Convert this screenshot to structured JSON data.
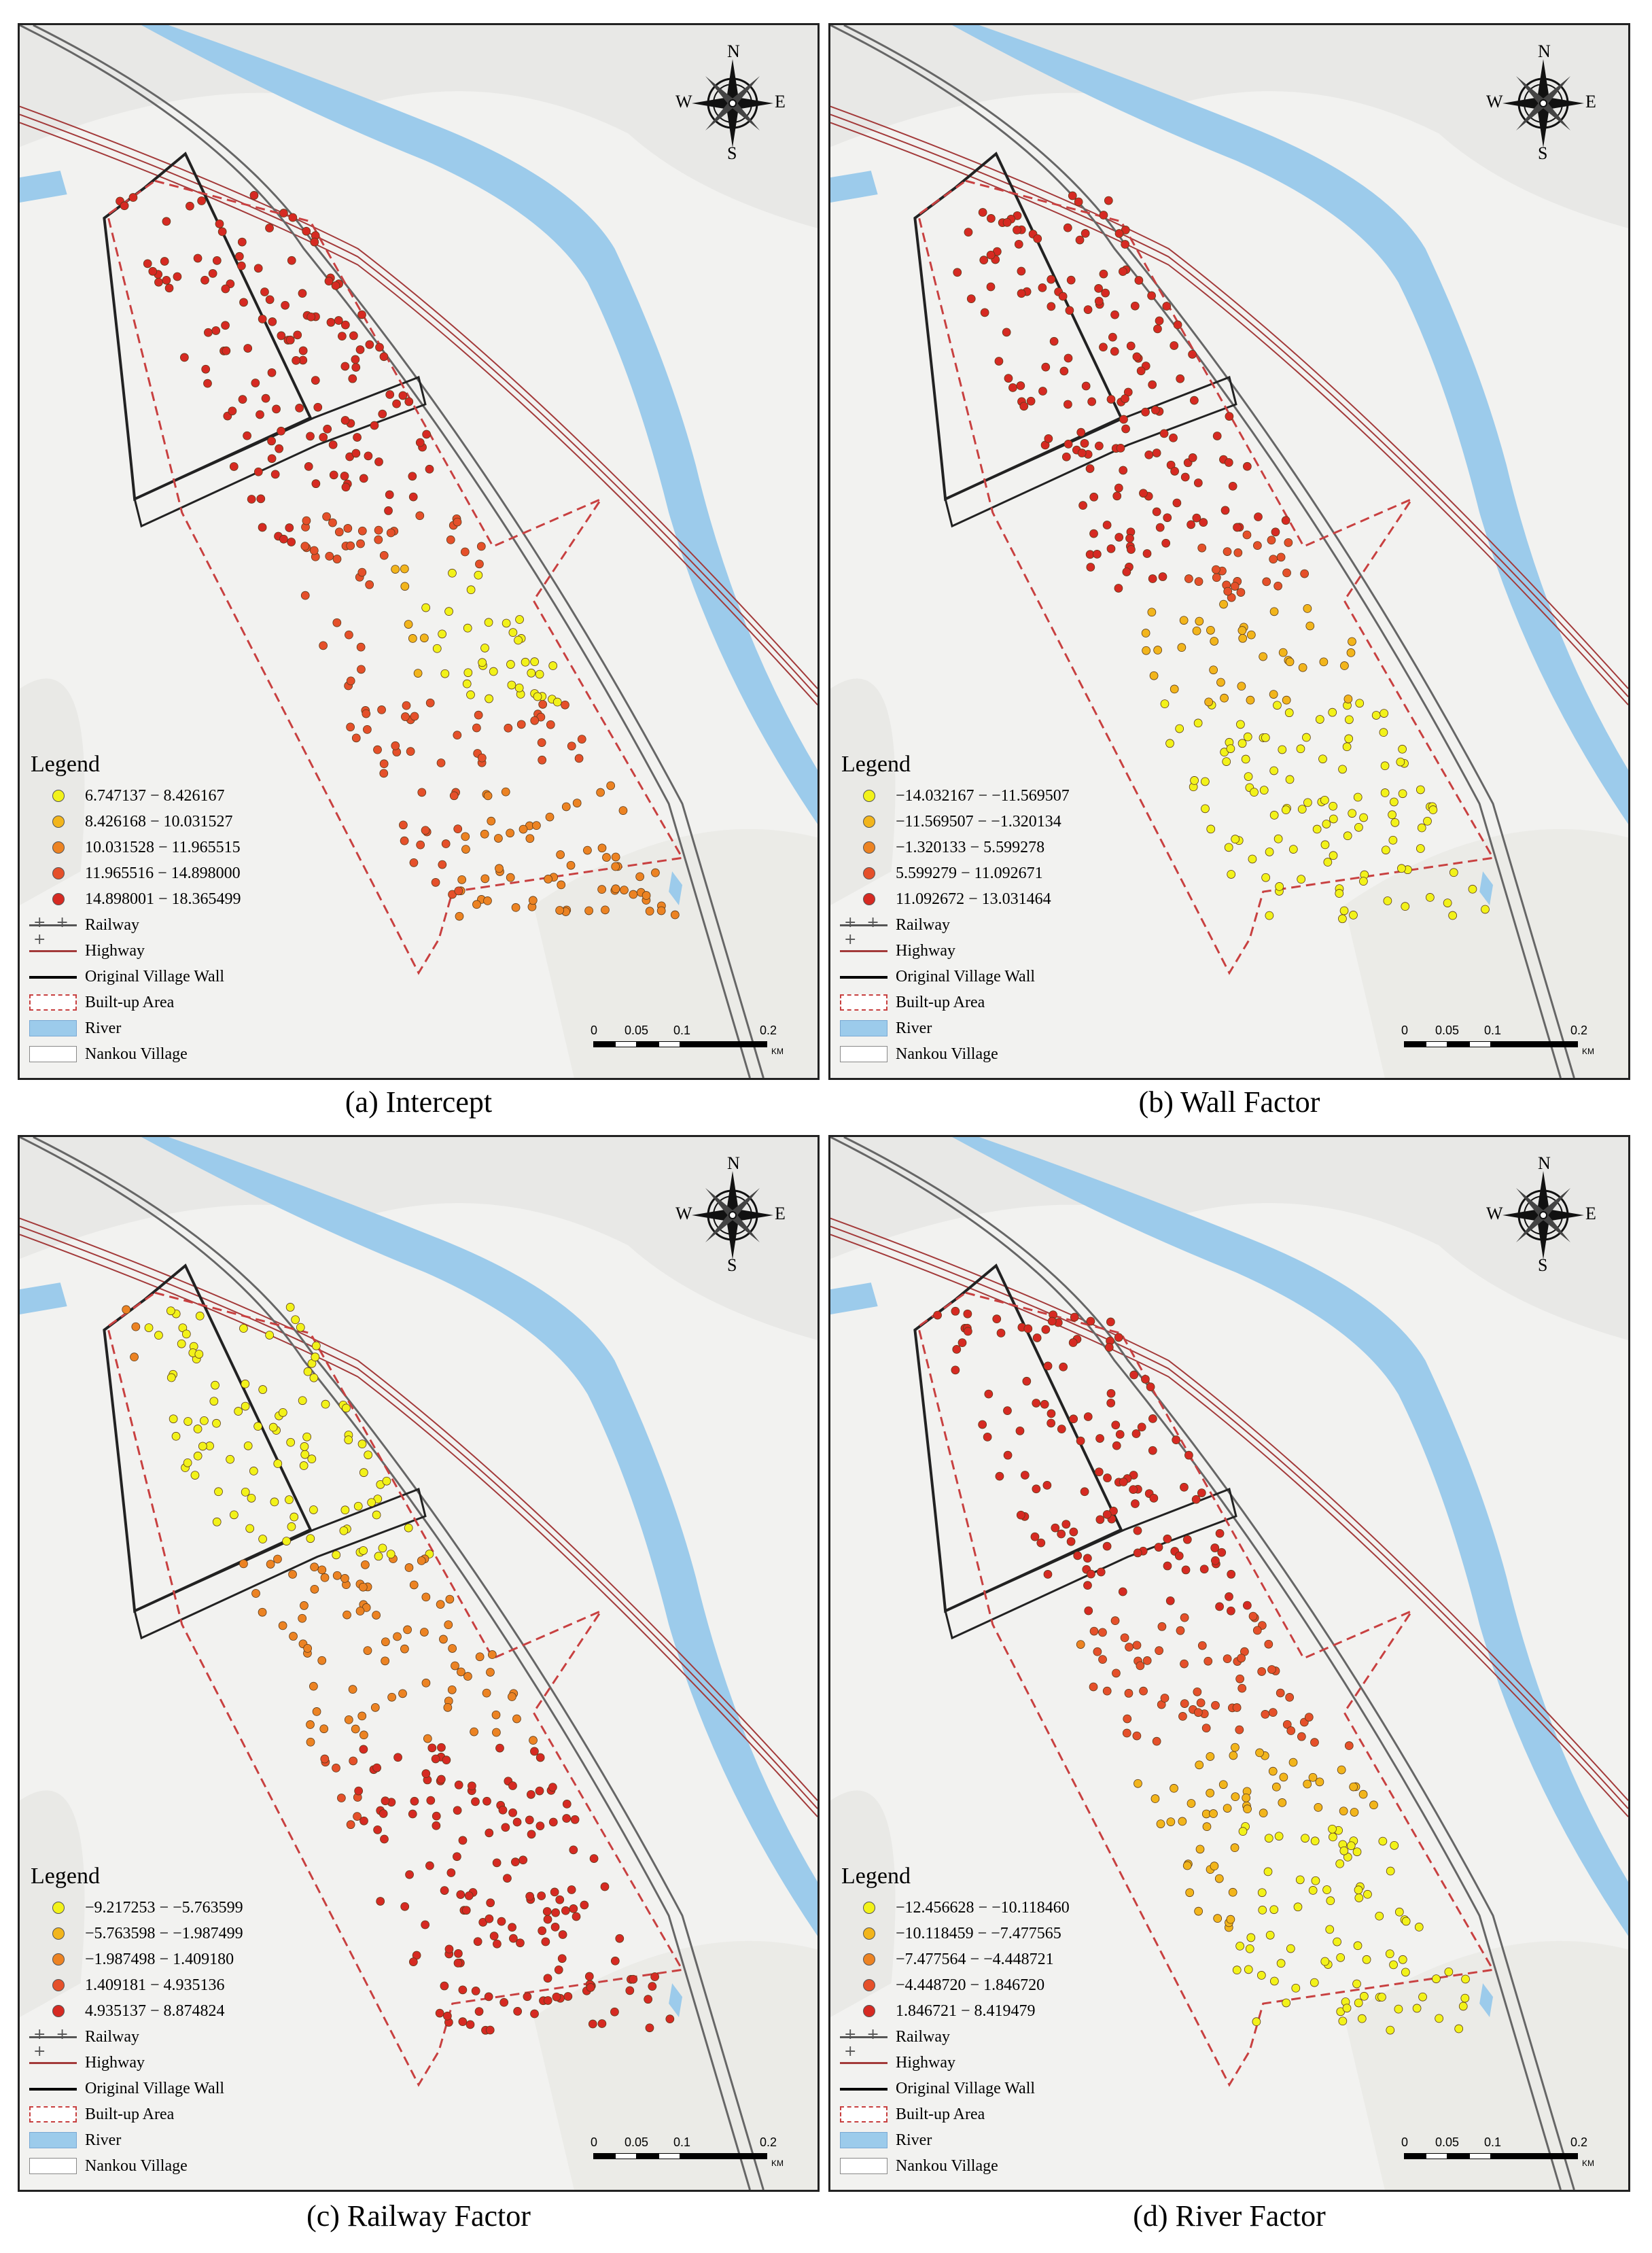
{
  "panels": [
    {
      "caption": "(a) Intercept",
      "legend_title": "Legend",
      "classes": [
        "6.747137 − 8.426167",
        "8.426168 − 10.031527",
        "10.031528 − 11.965515",
        "11.965516 − 14.898000",
        "14.898001 − 18.365499"
      ],
      "pattern": "intercept"
    },
    {
      "caption": "(b) Wall Factor",
      "legend_title": "Legend",
      "classes": [
        "−14.032167 − −11.569507",
        "−11.569507 − −1.320134",
        "−1.320133 − 5.599278",
        "5.599279 − 11.092671",
        "11.092672 − 13.031464"
      ],
      "pattern": "wall"
    },
    {
      "caption": "(c) Railway Factor",
      "legend_title": "Legend",
      "classes": [
        "−9.217253 − −5.763599",
        "−5.763598 − −1.987499",
        "−1.987498 − 1.409180",
        "1.409181 − 4.935136",
        "4.935137 − 8.874824"
      ],
      "pattern": "railway"
    },
    {
      "caption": "(d) River Factor",
      "legend_title": "Legend",
      "classes": [
        "−12.456628 − −10.118460",
        "−10.118459 − −7.477565",
        "−7.477564 − −4.448721",
        "−4.448720 − 1.846720",
        "1.846721 − 8.419479"
      ],
      "pattern": "river"
    }
  ],
  "legend_items": {
    "railway": "Railway",
    "highway": "Highway",
    "wall": "Original Village Wall",
    "builtup": "Built-up Area",
    "river": "River",
    "village": "Nankou Village"
  },
  "compass": {
    "n": "N",
    "s": "S",
    "e": "E",
    "w": "W"
  },
  "scale": {
    "t0": "0",
    "t1": "0.05",
    "t2": "0.1",
    "t3": "0.2",
    "unit": "KM"
  },
  "colors": {
    "class_colors": [
      "#f2f21a",
      "#f2b51c",
      "#ec8323",
      "#e5502a",
      "#d62a22"
    ],
    "river": "#9ccbeb",
    "highway": "#a33a3a",
    "railway": "#666666",
    "builtup": "#c84040",
    "background": "#f2f2f0"
  }
}
